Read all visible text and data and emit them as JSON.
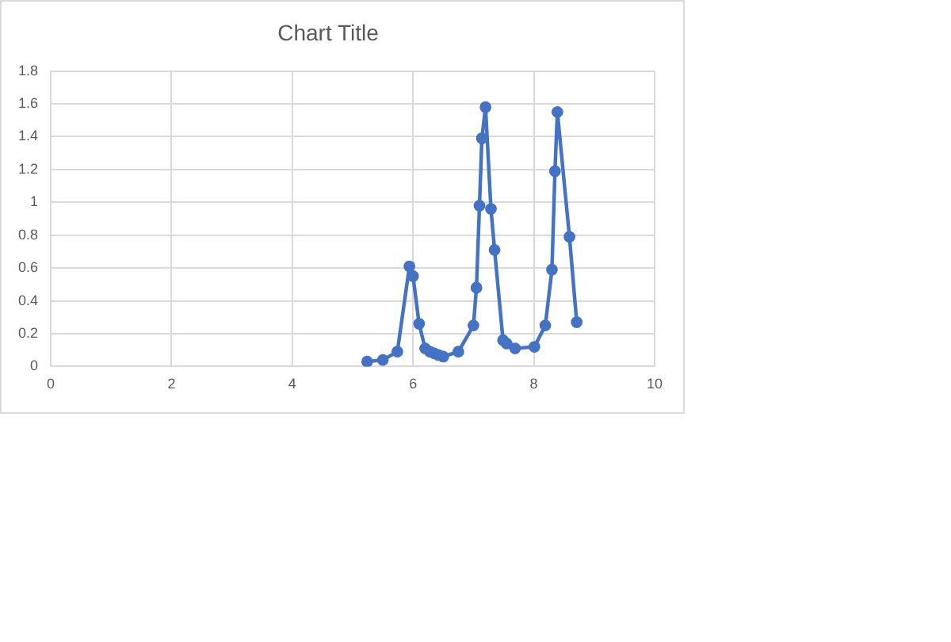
{
  "chart_data": {
    "type": "line",
    "title": "Chart Title",
    "x": [
      5.24,
      5.5,
      5.74,
      5.94,
      6.0,
      6.1,
      6.2,
      6.28,
      6.35,
      6.42,
      6.5,
      6.75,
      7.0,
      7.05,
      7.1,
      7.14,
      7.2,
      7.29,
      7.35,
      7.49,
      7.55,
      7.69,
      8.01,
      8.19,
      8.3,
      8.35,
      8.39,
      8.59,
      8.71
    ],
    "series": [
      {
        "color": "#4472c4",
        "values": [
          0.03,
          0.04,
          0.09,
          0.61,
          0.55,
          0.26,
          0.11,
          0.09,
          0.08,
          0.07,
          0.06,
          0.09,
          0.25,
          0.48,
          0.98,
          1.39,
          1.58,
          0.96,
          0.71,
          0.16,
          0.14,
          0.11,
          0.12,
          0.25,
          0.59,
          1.19,
          1.55,
          0.79,
          0.27
        ]
      }
    ],
    "xlim": [
      0,
      10
    ],
    "xticks": [
      0,
      2,
      4,
      6,
      8,
      10
    ],
    "ylim": [
      0,
      1.8
    ],
    "yticks": [
      0,
      0.2,
      0.4,
      0.6,
      0.8,
      1,
      1.2,
      1.4,
      1.6,
      1.8
    ],
    "grid": true,
    "marker": "circle",
    "line_style": "solid"
  }
}
